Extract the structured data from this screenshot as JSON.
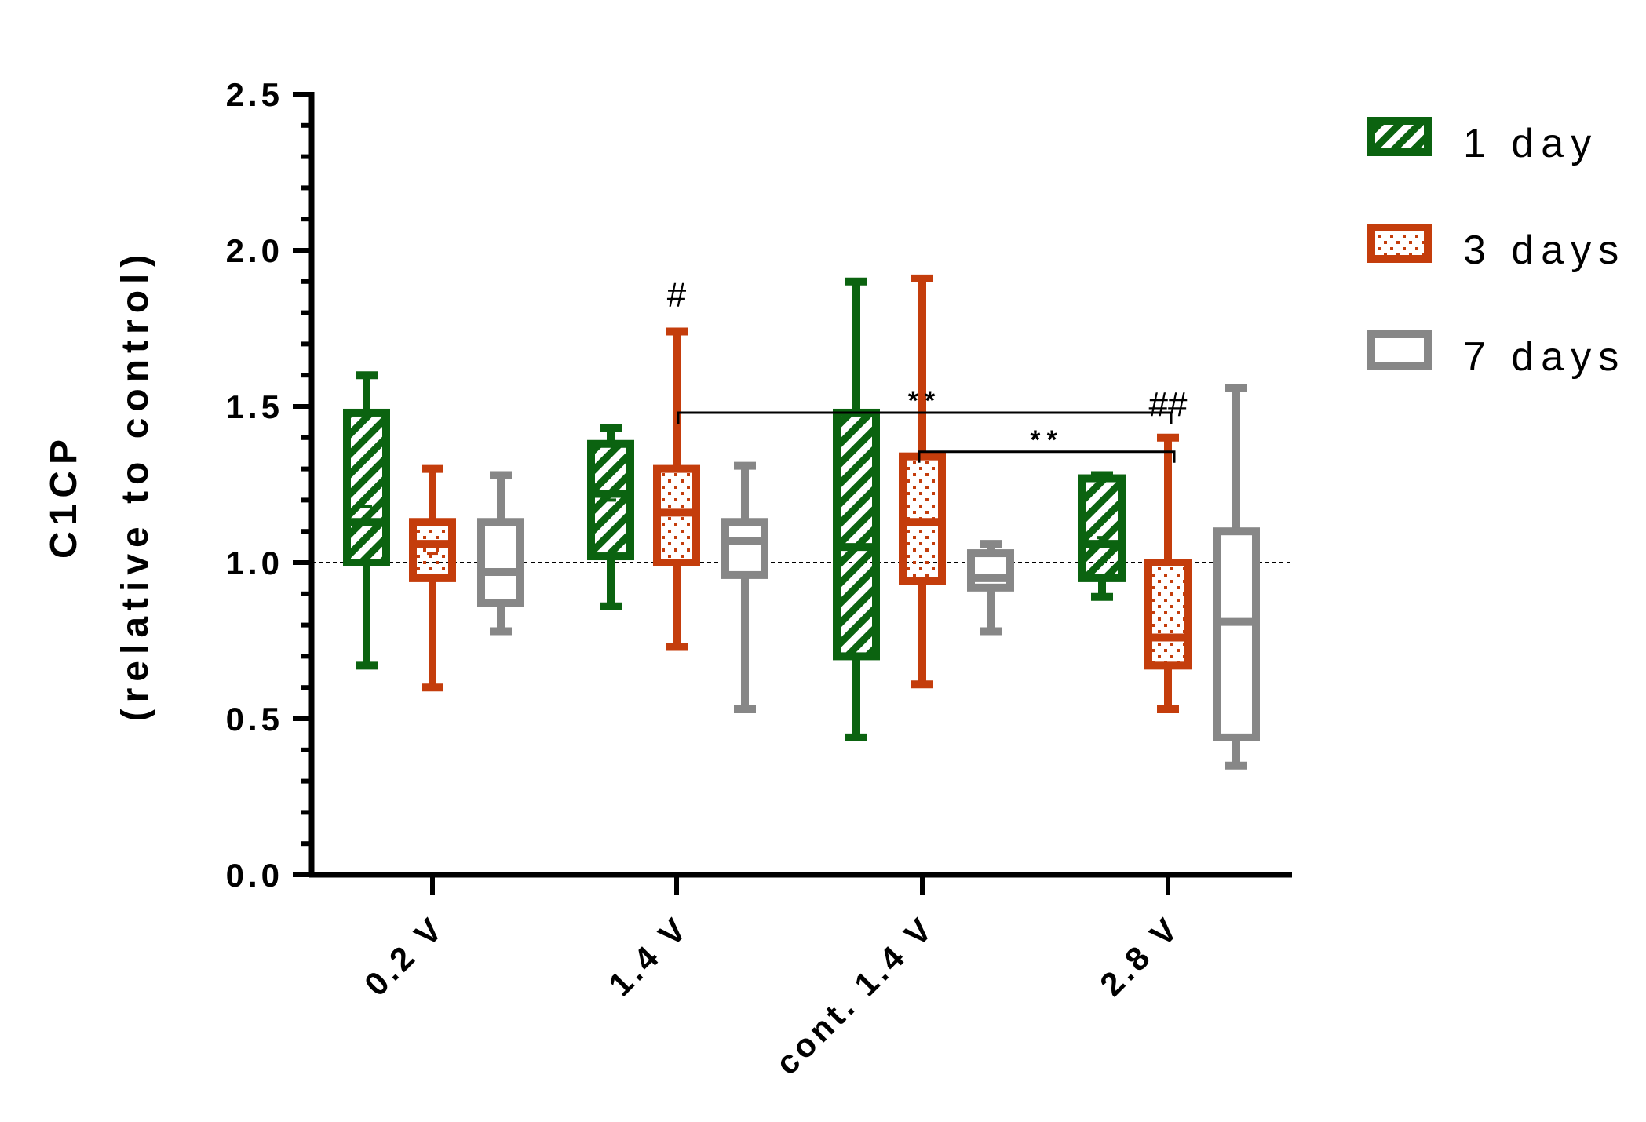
{
  "chart_data": {
    "type": "box",
    "title": "",
    "ylabel_line1": "C1CP",
    "ylabel_line2": "(relative to control)",
    "xlabel": "",
    "ylim": [
      0,
      2.5
    ],
    "yticks": [
      0.0,
      0.5,
      1.0,
      1.5,
      2.0,
      2.5
    ],
    "ytick_labels": [
      "0.0",
      "0.5",
      "1.0",
      "1.5",
      "2.0",
      "2.5"
    ],
    "reference_line": 1.0,
    "categories": [
      "0.2 V",
      "1.4 V",
      "cont. 1.4 V",
      "2.8 V"
    ],
    "legend_position": "right",
    "series": [
      {
        "name": "1 day",
        "color": "#0b6310",
        "pattern": "hatch",
        "boxes": [
          {
            "min": 0.67,
            "q1": 1.0,
            "median": 1.13,
            "mean": 1.18,
            "q3": 1.48,
            "max": 1.6
          },
          {
            "min": 0.86,
            "q1": 1.02,
            "median": 1.22,
            "mean": 1.2,
            "q3": 1.38,
            "max": 1.43
          },
          {
            "min": 0.44,
            "q1": 0.7,
            "median": 1.05,
            "mean": 1.05,
            "q3": 1.48,
            "max": 1.9
          },
          {
            "min": 0.89,
            "q1": 0.95,
            "median": 1.06,
            "mean": 1.08,
            "q3": 1.27,
            "max": 1.28
          }
        ]
      },
      {
        "name": "3 days",
        "color": "#c43d0c",
        "pattern": "dots",
        "boxes": [
          {
            "min": 0.6,
            "q1": 0.95,
            "median": 1.06,
            "mean": 1.03,
            "q3": 1.13,
            "max": 1.3
          },
          {
            "min": 0.73,
            "q1": 1.0,
            "median": 1.16,
            "mean": 1.16,
            "q3": 1.3,
            "max": 1.74
          },
          {
            "min": 0.61,
            "q1": 0.94,
            "median": 1.13,
            "mean": 1.13,
            "q3": 1.34,
            "max": 1.91
          },
          {
            "min": 0.53,
            "q1": 0.67,
            "median": 0.76,
            "mean": 0.76,
            "q3": 1.0,
            "max": 1.4
          }
        ]
      },
      {
        "name": "7 days",
        "color": "#878787",
        "pattern": "none",
        "boxes": [
          {
            "min": 0.78,
            "q1": 0.87,
            "median": 0.97,
            "mean": 0.97,
            "q3": 1.13,
            "max": 1.28
          },
          {
            "min": 0.53,
            "q1": 0.96,
            "median": 1.07,
            "mean": 1.07,
            "q3": 1.13,
            "max": 1.31
          },
          {
            "min": 0.78,
            "q1": 0.92,
            "median": 0.95,
            "mean": 0.95,
            "q3": 1.03,
            "max": 1.06
          },
          {
            "min": 0.35,
            "q1": 0.44,
            "median": 0.81,
            "mean": 0.81,
            "q3": 1.1,
            "max": 1.56
          }
        ]
      }
    ],
    "annotations": [
      {
        "text": "#",
        "category": "1.4 V",
        "series": "3 days",
        "y": 1.82
      },
      {
        "text": "##",
        "category": "2.8 V",
        "series": "3 days",
        "y": 1.47
      }
    ],
    "significance_brackets": [
      {
        "text": "**",
        "from": "1.4 V",
        "to": "2.8 V",
        "y": 1.48
      },
      {
        "text": "**",
        "from": "cont. 1.4 V",
        "to": "2.8 V",
        "y": 1.38
      }
    ]
  }
}
